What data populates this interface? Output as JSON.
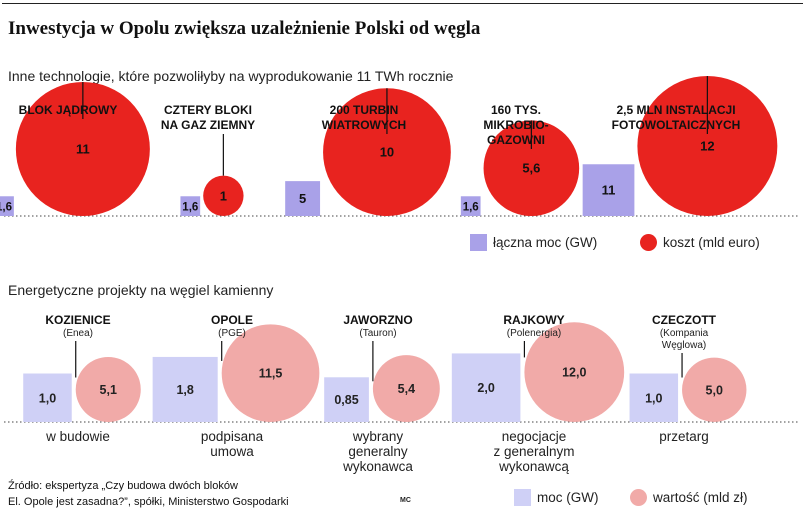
{
  "title": "Inwestycja w Opolu zwiększa uzależnienie Polski od węgla",
  "section1": {
    "heading": "Inne technologie, które pozwoliłyby na wyprodukowanie 11 TWh rocznie",
    "legend_power": "łączna moc (GW)",
    "legend_cost": "koszt (mld euro)"
  },
  "section2": {
    "heading": "Energetyczne projekty na węgiel kamienny",
    "legend_power": "moc (GW)",
    "legend_value": "wartość (mld zł)"
  },
  "source_line1": "Źródło: ekspertyza „Czy budowa dwóch bloków",
  "source_line2": "El. Opole jest zasadna?”, spółki, Ministerstwo Gospodarki",
  "author": "MC",
  "colors": {
    "power1": "#a9a1e8",
    "cost1": "#e8231f",
    "power2": "#cfd0f6",
    "value2": "#f1aaa8"
  },
  "chart_data": [
    {
      "type": "bar",
      "categories": [
        [
          "BLOK JĄDROWY"
        ],
        [
          "CZTERY BLOKI",
          "NA GAZ ZIEMNY"
        ],
        [
          "200 TURBIN",
          "WIATROWYCH"
        ],
        [
          "160 TYS.",
          "MIKROBIO-",
          "GAZOWNI"
        ],
        [
          "2,5 MLN INSTALACJI",
          "FOTOWOLTAICZNYCH"
        ]
      ],
      "series": [
        {
          "name": "łączna moc (GW)",
          "shape": "square",
          "values": [
            1.6,
            1.6,
            5,
            1.6,
            11
          ],
          "labels": [
            "1,6",
            "1,6",
            "5",
            "1,6",
            "11"
          ]
        },
        {
          "name": "koszt (mld euro)",
          "shape": "circle",
          "values": [
            11,
            1,
            10,
            5.6,
            12
          ],
          "labels": [
            "11",
            "1",
            "10",
            "5,6",
            "12"
          ]
        }
      ]
    },
    {
      "type": "bar",
      "categories": [
        {
          "name": "KOZIENICE",
          "company": "(Enea)",
          "status": [
            "w budowie"
          ]
        },
        {
          "name": "OPOLE",
          "company": "(PGE)",
          "status": [
            "podpisana",
            "umowa"
          ]
        },
        {
          "name": "JAWORZNO",
          "company": "(Tauron)",
          "status": [
            "wybrany",
            "generalny",
            "wykonawca"
          ]
        },
        {
          "name": "RAJKOWY",
          "company": "(Polenergia)",
          "status": [
            "negocjacje",
            "z generalnym",
            "wykonawcą"
          ]
        },
        {
          "name": "CZECZOTT",
          "company": [
            "(Kompania",
            "Węglowa)"
          ],
          "status": [
            "przetarg"
          ]
        }
      ],
      "series": [
        {
          "name": "moc (GW)",
          "shape": "square",
          "values": [
            1.0,
            1.8,
            0.85,
            2.0,
            1.0
          ],
          "labels": [
            "1,0",
            "1,8",
            "0,85",
            "2,0",
            "1,0"
          ]
        },
        {
          "name": "wartość (mld zł)",
          "shape": "circle",
          "values": [
            5.1,
            11.5,
            5.4,
            12.0,
            5.0
          ],
          "labels": [
            "5,1",
            "11,5",
            "5,4",
            "12,0",
            "5,0"
          ]
        }
      ]
    }
  ]
}
